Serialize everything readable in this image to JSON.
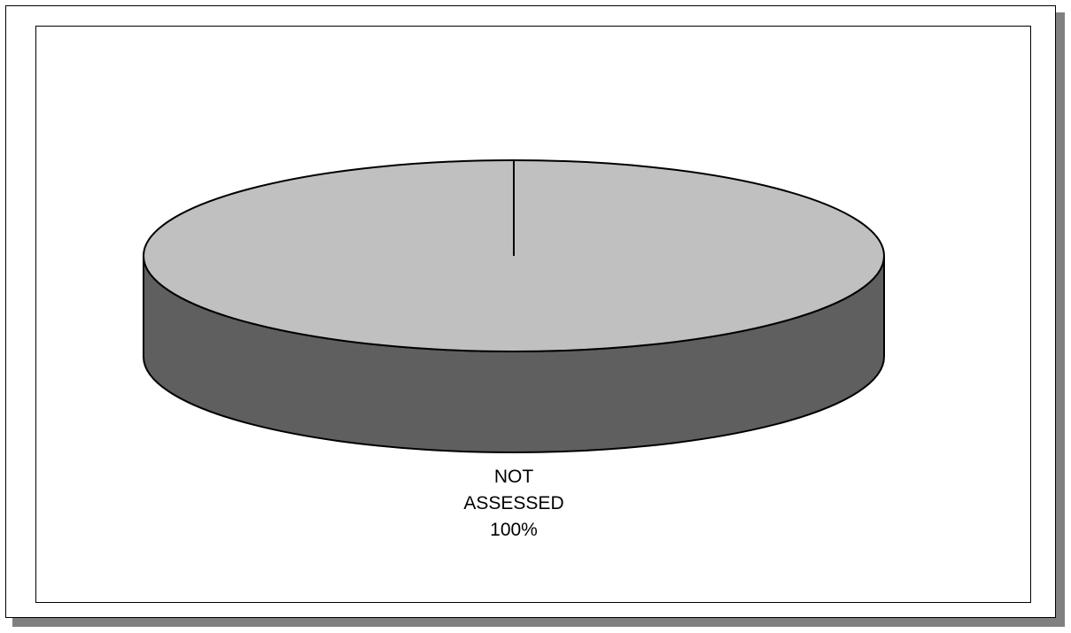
{
  "colors": {
    "slice_top": "#c0c0c0",
    "slice_side": "#5f5f5f",
    "outline": "#000000",
    "frame_shadow": "#808080"
  },
  "chart_data": {
    "type": "pie",
    "style": "3d",
    "categories": [
      "NOT ASSESSED"
    ],
    "values": [
      100
    ],
    "unit": "%",
    "data_labels": [
      {
        "category_line1": "NOT",
        "category_line2": "ASSESSED",
        "percent": "100%"
      }
    ],
    "legend": "none",
    "title": ""
  }
}
